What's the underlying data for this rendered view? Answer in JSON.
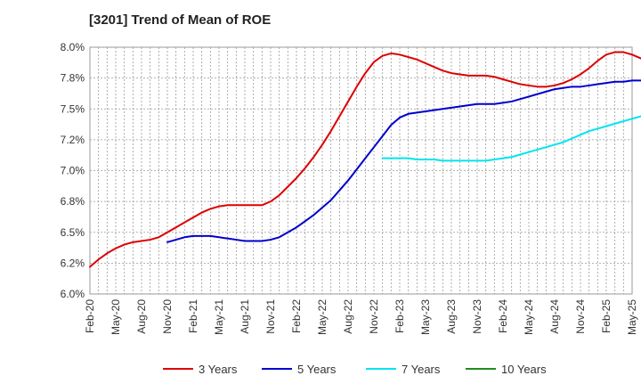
{
  "chart_data": {
    "type": "line",
    "title": "[3201]  Trend of Mean of ROE",
    "xlabel": "",
    "ylabel": "",
    "ylim": [
      6.0,
      8.0
    ],
    "y_tick_step": 0.25,
    "y_tick_labels": [
      "6.0%",
      "6.2%",
      "6.5%",
      "6.8%",
      "7.0%",
      "7.2%",
      "7.5%",
      "7.8%",
      "8.0%"
    ],
    "x_tick_labels": [
      "Feb-20",
      "May-20",
      "Aug-20",
      "Nov-20",
      "Feb-21",
      "May-21",
      "Aug-21",
      "Nov-21",
      "Feb-22",
      "May-22",
      "Aug-22",
      "Nov-22",
      "Feb-23",
      "May-23",
      "Aug-23",
      "Nov-23",
      "Feb-24",
      "May-24",
      "Aug-24",
      "Nov-24",
      "Feb-25",
      "May-25"
    ],
    "grid": true,
    "legend_position": "bottom",
    "series": [
      {
        "name": "3 Years",
        "color": "#dd0000",
        "start_index": 0,
        "values": [
          6.22,
          6.28,
          6.33,
          6.37,
          6.4,
          6.42,
          6.43,
          6.44,
          6.46,
          6.5,
          6.54,
          6.58,
          6.62,
          6.66,
          6.69,
          6.71,
          6.72,
          6.72,
          6.72,
          6.72,
          6.72,
          6.75,
          6.8,
          6.87,
          6.94,
          7.02,
          7.11,
          7.21,
          7.32,
          7.44,
          7.56,
          7.68,
          7.79,
          7.88,
          7.93,
          7.95,
          7.94,
          7.92,
          7.9,
          7.87,
          7.84,
          7.81,
          7.79,
          7.78,
          7.77,
          7.77,
          7.77,
          7.76,
          7.74,
          7.72,
          7.7,
          7.69,
          7.68,
          7.68,
          7.69,
          7.71,
          7.74,
          7.78,
          7.83,
          7.89,
          7.94,
          7.96,
          7.96,
          7.94,
          7.91,
          7.87,
          7.82
        ]
      },
      {
        "name": "5 Years",
        "color": "#0000cc",
        "start_index": 9,
        "values": [
          6.42,
          6.44,
          6.46,
          6.47,
          6.47,
          6.47,
          6.46,
          6.45,
          6.44,
          6.43,
          6.43,
          6.43,
          6.44,
          6.46,
          6.5,
          6.54,
          6.59,
          6.64,
          6.7,
          6.76,
          6.84,
          6.92,
          7.01,
          7.1,
          7.19,
          7.28,
          7.37,
          7.43,
          7.46,
          7.47,
          7.48,
          7.49,
          7.5,
          7.51,
          7.52,
          7.53,
          7.54,
          7.54,
          7.54,
          7.55,
          7.56,
          7.58,
          7.6,
          7.62,
          7.64,
          7.66,
          7.67,
          7.68,
          7.68,
          7.69,
          7.7,
          7.71,
          7.72,
          7.72,
          7.73,
          7.73,
          7.73,
          7.73
        ]
      },
      {
        "name": "7 Years",
        "color": "#00e5ee",
        "start_index": 34,
        "values": [
          7.1,
          7.1,
          7.1,
          7.1,
          7.09,
          7.09,
          7.09,
          7.08,
          7.08,
          7.08,
          7.08,
          7.08,
          7.08,
          7.09,
          7.1,
          7.11,
          7.13,
          7.15,
          7.17,
          7.19,
          7.21,
          7.23,
          7.26,
          7.29,
          7.32,
          7.34,
          7.36,
          7.38,
          7.4,
          7.42,
          7.44,
          7.46,
          7.48
        ]
      },
      {
        "name": "10 Years",
        "color": "#228b22",
        "start_index": 0,
        "values": []
      }
    ]
  }
}
